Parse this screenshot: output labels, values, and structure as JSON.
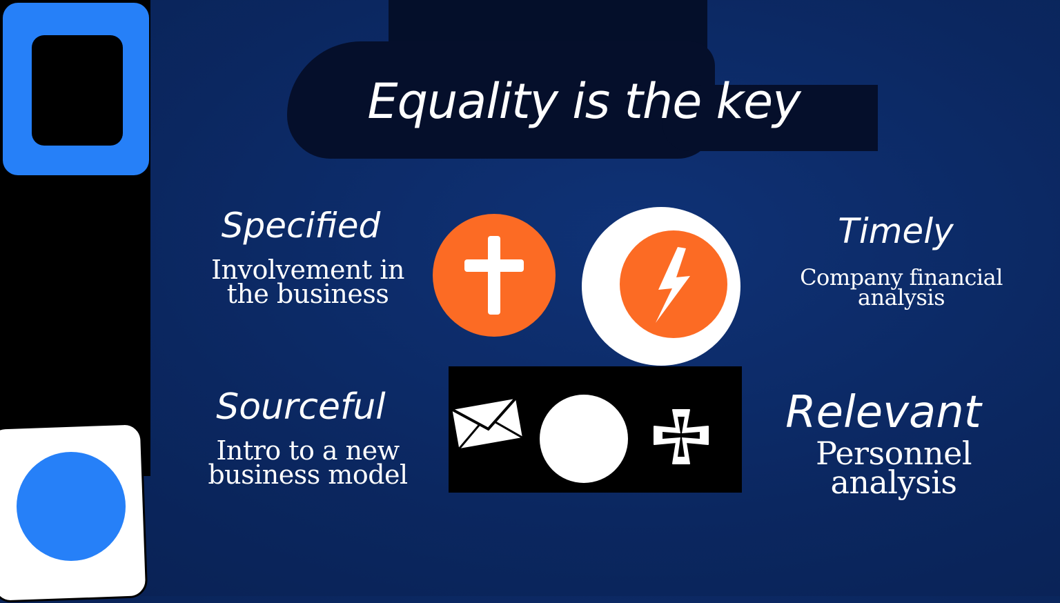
{
  "page": {
    "title": "Equality is the key"
  },
  "features": {
    "specified": {
      "title": "Specified",
      "description": "Involvement in the business"
    },
    "timely": {
      "title": "Timely",
      "description": "Company financial analysis"
    },
    "sourceful": {
      "title": "Sourceful",
      "description": "Intro to a new business model"
    },
    "relevant": {
      "title": "Relevant",
      "description": "Personnel analysis"
    }
  },
  "icons": [
    "plus-icon",
    "lightning-bolt-icon",
    "envelope-icon",
    "circle-icon",
    "cross-icon"
  ],
  "colors": {
    "background": "#0b2760",
    "accent_blue": "#2680f8",
    "accent_orange": "#fc6b24",
    "panel_black": "#000000",
    "text": "#ffffff"
  }
}
